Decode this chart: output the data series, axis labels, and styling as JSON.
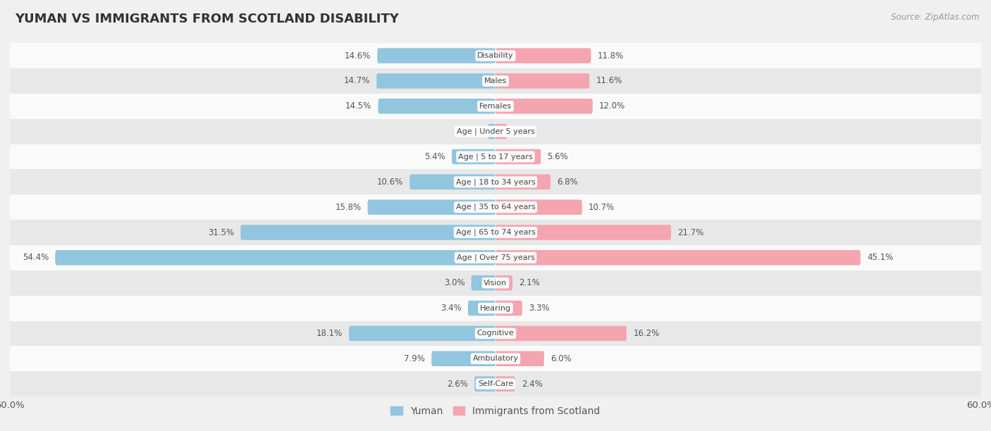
{
  "title": "YUMAN VS IMMIGRANTS FROM SCOTLAND DISABILITY",
  "source": "Source: ZipAtlas.com",
  "categories": [
    "Disability",
    "Males",
    "Females",
    "Age | Under 5 years",
    "Age | 5 to 17 years",
    "Age | 18 to 34 years",
    "Age | 35 to 64 years",
    "Age | 65 to 74 years",
    "Age | Over 75 years",
    "Vision",
    "Hearing",
    "Cognitive",
    "Ambulatory",
    "Self-Care"
  ],
  "yuman_values": [
    14.6,
    14.7,
    14.5,
    0.95,
    5.4,
    10.6,
    15.8,
    31.5,
    54.4,
    3.0,
    3.4,
    18.1,
    7.9,
    2.6
  ],
  "scotland_values": [
    11.8,
    11.6,
    12.0,
    1.4,
    5.6,
    6.8,
    10.7,
    21.7,
    45.1,
    2.1,
    3.3,
    16.2,
    6.0,
    2.4
  ],
  "yuman_color": "#92c5de",
  "scotland_color": "#f4a5b0",
  "yuman_label": "Yuman",
  "scotland_label": "Immigrants from Scotland",
  "axis_max": 60.0,
  "background_color": "#f0f0f0",
  "row_bg_light": "#fafafa",
  "row_bg_dark": "#e8e8e8",
  "bar_height": 0.6,
  "title_fontsize": 13,
  "label_fontsize": 8.5,
  "value_fontsize": 8.5,
  "legend_fontsize": 10
}
